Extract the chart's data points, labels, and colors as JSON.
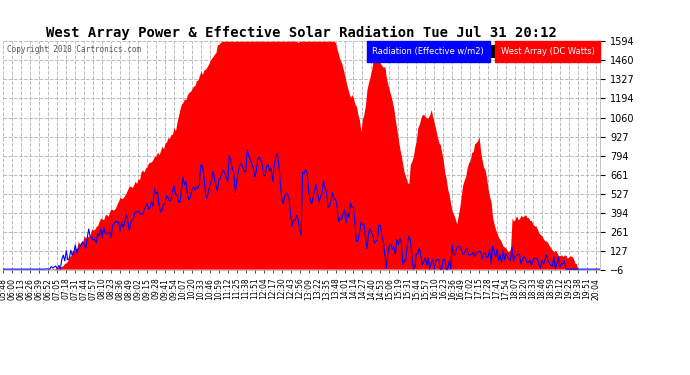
{
  "title": "West Array Power & Effective Solar Radiation Tue Jul 31 20:12",
  "copyright": "Copyright 2018 Cartronics.com",
  "legend_labels": [
    "Radiation (Effective w/m2)",
    "West Array (DC Watts)"
  ],
  "legend_colors": [
    "#0000ff",
    "#ff0000"
  ],
  "ymin": -6.1,
  "ymax": 1593.9,
  "yticks": [
    -6.1,
    127.2,
    260.6,
    393.9,
    527.2,
    660.6,
    793.9,
    927.2,
    1060.5,
    1193.9,
    1327.2,
    1460.5,
    1593.9
  ],
  "bg_color": "#ffffff",
  "plot_bg": "#ffffff",
  "grid_color": "#aaaaaa",
  "title_color": "#000000",
  "tick_color": "#000000",
  "red_color": "#ff0000",
  "blue_color": "#0000ff",
  "n_points": 400,
  "time_start": "05:48",
  "time_end": "20:11"
}
